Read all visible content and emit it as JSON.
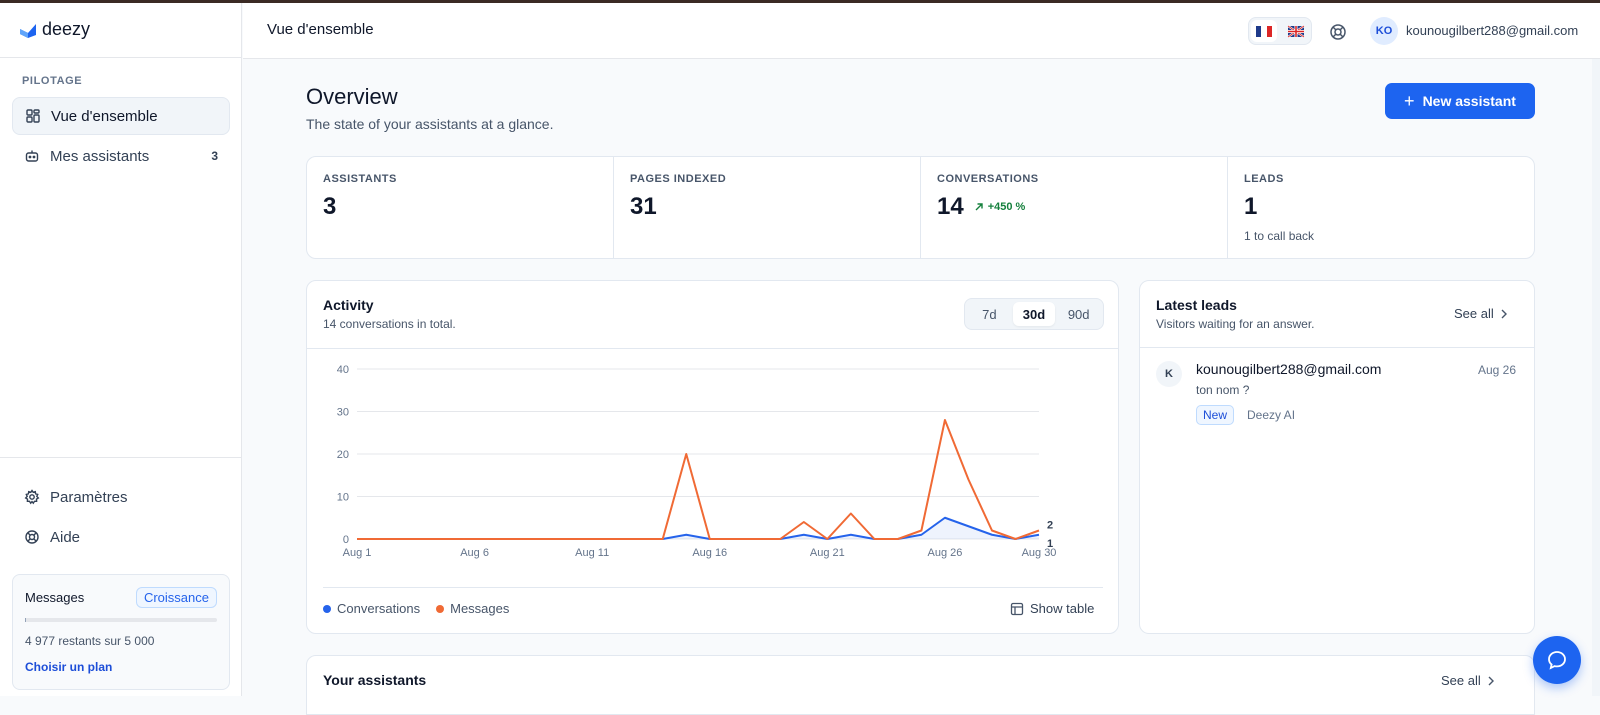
{
  "app": {
    "name": "deezy"
  },
  "sidebar": {
    "section_label": "PILOTAGE",
    "items": [
      {
        "label": "Vue d'ensemble",
        "icon": "dashboard-icon",
        "active": true
      },
      {
        "label": "Mes assistants",
        "icon": "bot-icon",
        "count": "3"
      }
    ],
    "bottom_items": [
      {
        "label": "Paramètres",
        "icon": "gear-icon"
      },
      {
        "label": "Aide",
        "icon": "lifebuoy-icon"
      }
    ],
    "messages_card": {
      "title": "Messages",
      "plan": "Croissance",
      "used_fraction": 0.0046,
      "remaining_text": "4 977 restants sur 5 000",
      "link": "Choisir un plan"
    }
  },
  "topbar": {
    "title": "Vue d'ensemble",
    "languages": [
      "fr-flag-icon",
      "uk-flag-icon"
    ],
    "active_language": "fr",
    "avatar_initials": "KO",
    "user_email": "kounougilbert288@gmail.com"
  },
  "page": {
    "title": "Overview",
    "subtitle": "The state of your assistants at a glance.",
    "new_button": "New assistant"
  },
  "stats": [
    {
      "label": "ASSISTANTS",
      "value": "3"
    },
    {
      "label": "PAGES INDEXED",
      "value": "31"
    },
    {
      "label": "CONVERSATIONS",
      "value": "14",
      "delta": "+450 %"
    },
    {
      "label": "LEADS",
      "value": "1",
      "sub": "1 to call back"
    }
  ],
  "activity": {
    "title": "Activity",
    "subtitle": "14 conversations in total.",
    "ranges": [
      "7d",
      "30d",
      "90d"
    ],
    "active_range": "30d",
    "show_table": "Show table"
  },
  "chart_data": {
    "type": "line",
    "title": "",
    "xlabel": "",
    "ylabel": "",
    "ylim": [
      0,
      40
    ],
    "y_ticks": [
      "0",
      "10",
      "20",
      "30",
      "40"
    ],
    "x_ticks": [
      "Aug 1",
      "Aug 6",
      "Aug 11",
      "Aug 16",
      "Aug 21",
      "Aug 26",
      "Aug 30"
    ],
    "x": [
      "Aug 1",
      "Aug 2",
      "Aug 3",
      "Aug 4",
      "Aug 5",
      "Aug 6",
      "Aug 7",
      "Aug 8",
      "Aug 9",
      "Aug 10",
      "Aug 11",
      "Aug 12",
      "Aug 13",
      "Aug 14",
      "Aug 15",
      "Aug 16",
      "Aug 17",
      "Aug 18",
      "Aug 19",
      "Aug 20",
      "Aug 21",
      "Aug 22",
      "Aug 23",
      "Aug 24",
      "Aug 25",
      "Aug 26",
      "Aug 27",
      "Aug 28",
      "Aug 29",
      "Aug 30"
    ],
    "series": [
      {
        "name": "Conversations",
        "color": "#2563eb",
        "values": [
          0,
          0,
          0,
          0,
          0,
          0,
          0,
          0,
          0,
          0,
          0,
          0,
          0,
          0,
          1,
          0,
          0,
          0,
          0,
          1,
          0,
          1,
          0,
          0,
          1,
          5,
          3,
          1,
          0,
          1
        ]
      },
      {
        "name": "Messages",
        "color": "#f06a35",
        "values": [
          0,
          0,
          0,
          0,
          0,
          0,
          0,
          0,
          0,
          0,
          0,
          0,
          0,
          0,
          20,
          0,
          0,
          0,
          0,
          4,
          0,
          6,
          0,
          0,
          2,
          28,
          14,
          2,
          0,
          2
        ]
      }
    ],
    "end_labels": [
      "2",
      "1"
    ],
    "grid": true,
    "legend": "bottom-left"
  },
  "leads": {
    "title": "Latest leads",
    "subtitle": "Visitors waiting for an answer.",
    "see_all": "See all",
    "items": [
      {
        "initial": "K",
        "email": "kounougilbert288@gmail.com",
        "date": "Aug 26",
        "message": "ton nom ?",
        "badge": "New",
        "source": "Deezy AI"
      }
    ]
  },
  "assistants": {
    "title": "Your assistants",
    "see_all": "See all"
  },
  "colors": {
    "accent": "#1d64f0",
    "messages": "#f06a35",
    "conversations": "#2563eb",
    "positive": "#15803d"
  }
}
